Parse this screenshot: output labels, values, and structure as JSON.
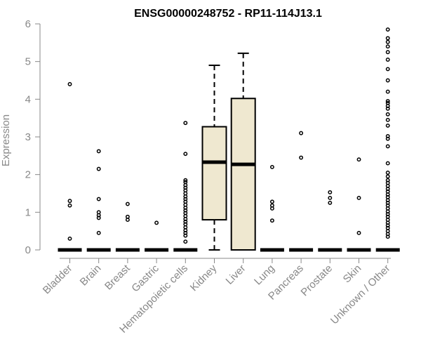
{
  "chart_data": {
    "type": "box",
    "title": "ENSG00000248752 - RP11-114J13.1",
    "xlabel": "",
    "ylabel": "Expression",
    "ylim": [
      0,
      6
    ],
    "yticks": [
      0,
      1,
      2,
      3,
      4,
      5,
      6
    ],
    "grid": false,
    "legend": "none",
    "colors": {
      "box_fill": "#EFE8D0",
      "box_stroke": "#000000",
      "axis": "#888888"
    },
    "categories": [
      "Bladder",
      "Brain",
      "Breast",
      "Gastric",
      "Hematopoietic cells",
      "Kidney",
      "Liver",
      "Lung",
      "Pancreas",
      "Prostate",
      "Skin",
      "Unknown / Other"
    ],
    "boxes": [
      {
        "category": "Bladder",
        "q1": 0,
        "median": 0,
        "q3": 0,
        "whisker_low": 0,
        "whisker_high": 0,
        "outliers": [
          4.4,
          1.3,
          1.18,
          0.3
        ]
      },
      {
        "category": "Brain",
        "q1": 0,
        "median": 0,
        "q3": 0,
        "whisker_low": 0,
        "whisker_high": 0,
        "outliers": [
          2.62,
          2.15,
          1.35,
          1.0,
          0.92,
          0.85,
          0.45
        ]
      },
      {
        "category": "Breast",
        "q1": 0,
        "median": 0,
        "q3": 0,
        "whisker_low": 0,
        "whisker_high": 0,
        "outliers": [
          1.22,
          0.88,
          0.8
        ]
      },
      {
        "category": "Gastric",
        "q1": 0,
        "median": 0,
        "q3": 0,
        "whisker_low": 0,
        "whisker_high": 0,
        "outliers": [
          0.72
        ]
      },
      {
        "category": "Hematopoietic cells",
        "q1": 0,
        "median": 0,
        "q3": 0,
        "whisker_low": 0,
        "whisker_high": 0,
        "outliers": [
          3.37,
          2.55,
          1.85,
          1.8,
          1.72,
          1.65,
          1.58,
          1.5,
          1.42,
          1.35,
          1.28,
          1.2,
          1.12,
          1.05,
          0.98,
          0.9,
          0.82,
          0.75,
          0.68,
          0.6,
          0.52,
          0.45,
          0.38,
          0.22
        ]
      },
      {
        "category": "Kidney",
        "q1": 0.8,
        "median": 2.33,
        "q3": 3.27,
        "whisker_low": 0,
        "whisker_high": 4.9,
        "outliers": []
      },
      {
        "category": "Liver",
        "q1": 0,
        "median": 2.27,
        "q3": 4.02,
        "whisker_low": 0,
        "whisker_high": 5.22,
        "outliers": []
      },
      {
        "category": "Lung",
        "q1": 0,
        "median": 0,
        "q3": 0,
        "whisker_low": 0,
        "whisker_high": 0,
        "outliers": [
          2.2,
          1.28,
          1.18,
          1.1,
          0.78
        ]
      },
      {
        "category": "Pancreas",
        "q1": 0,
        "median": 0,
        "q3": 0,
        "whisker_low": 0,
        "whisker_high": 0,
        "outliers": [
          3.1,
          2.45
        ]
      },
      {
        "category": "Prostate",
        "q1": 0,
        "median": 0,
        "q3": 0,
        "whisker_low": 0,
        "whisker_high": 0,
        "outliers": [
          1.53,
          1.38,
          1.25
        ]
      },
      {
        "category": "Skin",
        "q1": 0,
        "median": 0,
        "q3": 0,
        "whisker_low": 0,
        "whisker_high": 0,
        "outliers": [
          2.4,
          1.38,
          0.45
        ]
      },
      {
        "category": "Unknown / Other",
        "q1": 0,
        "median": 0,
        "q3": 0,
        "whisker_low": 0,
        "whisker_high": 0,
        "outliers": [
          5.85,
          5.62,
          5.52,
          5.4,
          5.25,
          5.05,
          4.8,
          4.5,
          4.2,
          3.95,
          3.9,
          3.82,
          3.75,
          3.6,
          3.45,
          3.3,
          3.02,
          2.95,
          2.75,
          2.3,
          2.05,
          1.95,
          1.85,
          1.78,
          1.7,
          1.62,
          1.55,
          1.47,
          1.4,
          1.32,
          1.25,
          1.18,
          1.1,
          1.02,
          0.95,
          0.88,
          0.8,
          0.72,
          0.65,
          0.58,
          0.5,
          0.42,
          0.35
        ]
      }
    ]
  }
}
